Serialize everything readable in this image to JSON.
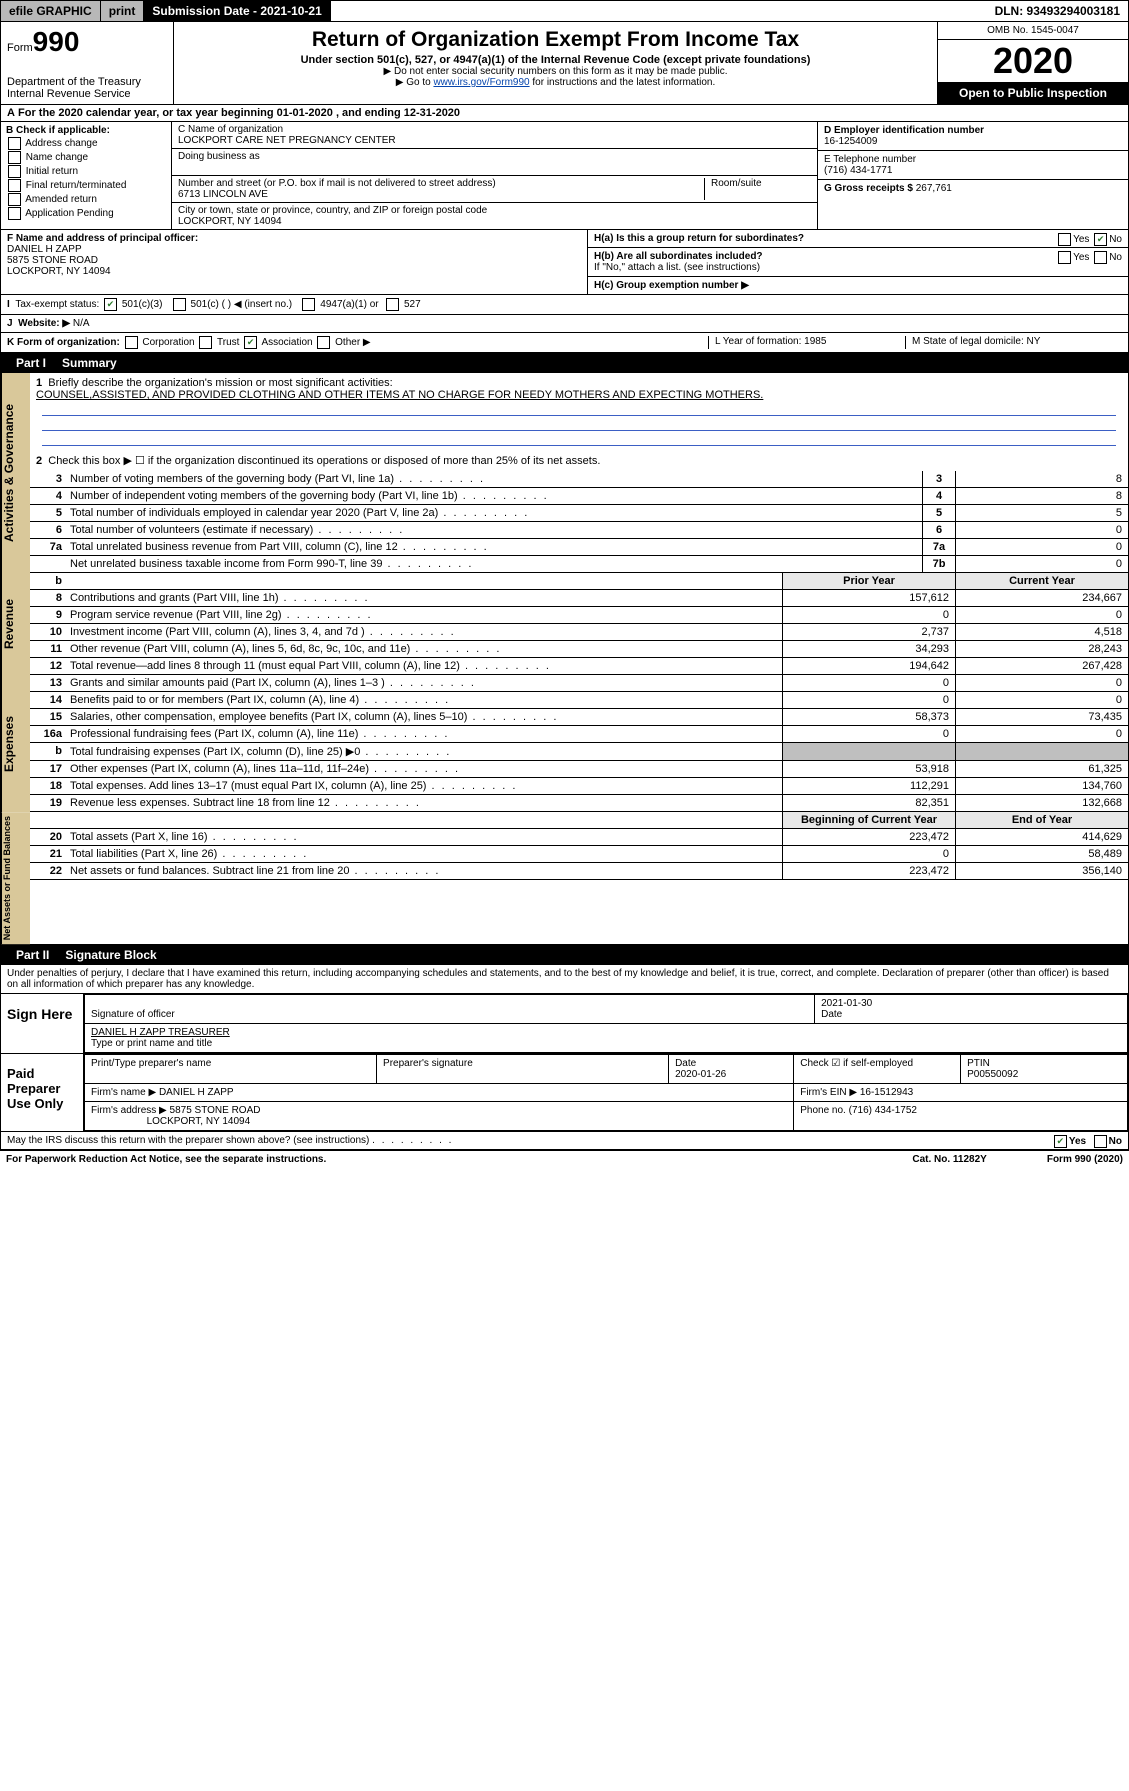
{
  "topbar": {
    "efile": "efile GRAPHIC",
    "print": "print",
    "subdate_label": "Submission Date - 2021-10-21",
    "dln": "DLN: 93493294003181"
  },
  "header": {
    "form_label": "Form",
    "form_num": "990",
    "dept": "Department of the Treasury",
    "irs": "Internal Revenue Service",
    "title": "Return of Organization Exempt From Income Tax",
    "sub1": "Under section 501(c), 527, or 4947(a)(1) of the Internal Revenue Code (except private foundations)",
    "sub2": "▶ Do not enter social security numbers on this form as it may be made public.",
    "sub3_pre": "▶ Go to ",
    "sub3_link": "www.irs.gov/Form990",
    "sub3_post": " for instructions and the latest information.",
    "omb": "OMB No. 1545-0047",
    "year": "2020",
    "open": "Open to Public Inspection"
  },
  "period": {
    "text": "For the 2020 calendar year, or tax year beginning 01-01-2020    , and ending 12-31-2020"
  },
  "boxB": {
    "title": "B Check if applicable:",
    "opts": [
      "Address change",
      "Name change",
      "Initial return",
      "Final return/terminated",
      "Amended return",
      "Application Pending"
    ]
  },
  "boxC": {
    "name_label": "C Name of organization",
    "name": "LOCKPORT CARE NET PREGNANCY CENTER",
    "dba_label": "Doing business as",
    "street_label": "Number and street (or P.O. box if mail is not delivered to street address)",
    "room_label": "Room/suite",
    "street": "6713 LINCOLN AVE",
    "city_label": "City or town, state or province, country, and ZIP or foreign postal code",
    "city": "LOCKPORT, NY  14094"
  },
  "boxD": {
    "label": "D Employer identification number",
    "ein": "16-1254009",
    "tel_label": "E Telephone number",
    "tel": "(716) 434-1771",
    "gross_label": "G Gross receipts $",
    "gross": "267,761"
  },
  "boxF": {
    "label": "F  Name and address of principal officer:",
    "l1": "DANIEL H ZAPP",
    "l2": "5875 STONE ROAD",
    "l3": "LOCKPORT, NY  14094"
  },
  "boxH": {
    "ha": "H(a)  Is this a group return for subordinates?",
    "hb": "H(b)  Are all subordinates included?",
    "hb_note": "If \"No,\" attach a list. (see instructions)",
    "hc": "H(c)  Group exemption number ▶",
    "yes": "Yes",
    "no": "No"
  },
  "rowI": {
    "label": "Tax-exempt status:",
    "o1": "501(c)(3)",
    "o2": "501(c) (  ) ◀ (insert no.)",
    "o3": "4947(a)(1) or",
    "o4": "527"
  },
  "rowJ": {
    "label": "Website: ▶",
    "val": "N/A"
  },
  "rowK": {
    "label": "K Form of organization:",
    "opts": [
      "Corporation",
      "Trust",
      "Association",
      "Other ▶"
    ],
    "L": "L Year of formation: 1985",
    "M": "M State of legal domicile: NY"
  },
  "part1": {
    "title": "Part I",
    "sub": "Summary",
    "l1_label": "Briefly describe the organization's mission or most significant activities:",
    "l1_text": "COUNSEL,ASSISTED, AND PROVIDED CLOTHING AND OTHER ITEMS AT NO CHARGE FOR NEEDY MOTHERS AND EXPECTING MOTHERS.",
    "l2": "Check this box ▶ ☐  if the organization discontinued its operations or disposed of more than 25% of its net assets.",
    "lines_gov": [
      {
        "n": "3",
        "t": "Number of voting members of the governing body (Part VI, line 1a)",
        "b": "3",
        "v": "8"
      },
      {
        "n": "4",
        "t": "Number of independent voting members of the governing body (Part VI, line 1b)",
        "b": "4",
        "v": "8"
      },
      {
        "n": "5",
        "t": "Total number of individuals employed in calendar year 2020 (Part V, line 2a)",
        "b": "5",
        "v": "5"
      },
      {
        "n": "6",
        "t": "Total number of volunteers (estimate if necessary)",
        "b": "6",
        "v": "0"
      },
      {
        "n": "7a",
        "t": "Total unrelated business revenue from Part VIII, column (C), line 12",
        "b": "7a",
        "v": "0"
      },
      {
        "n": "",
        "t": "Net unrelated business taxable income from Form 990-T, line 39",
        "b": "7b",
        "v": "0"
      }
    ],
    "hdr_prior": "Prior Year",
    "hdr_curr": "Current Year",
    "rev": [
      {
        "n": "8",
        "t": "Contributions and grants (Part VIII, line 1h)",
        "p": "157,612",
        "c": "234,667"
      },
      {
        "n": "9",
        "t": "Program service revenue (Part VIII, line 2g)",
        "p": "0",
        "c": "0"
      },
      {
        "n": "10",
        "t": "Investment income (Part VIII, column (A), lines 3, 4, and 7d )",
        "p": "2,737",
        "c": "4,518"
      },
      {
        "n": "11",
        "t": "Other revenue (Part VIII, column (A), lines 5, 6d, 8c, 9c, 10c, and 11e)",
        "p": "34,293",
        "c": "28,243"
      },
      {
        "n": "12",
        "t": "Total revenue—add lines 8 through 11 (must equal Part VIII, column (A), line 12)",
        "p": "194,642",
        "c": "267,428"
      }
    ],
    "exp": [
      {
        "n": "13",
        "t": "Grants and similar amounts paid (Part IX, column (A), lines 1–3 )",
        "p": "0",
        "c": "0"
      },
      {
        "n": "14",
        "t": "Benefits paid to or for members (Part IX, column (A), line 4)",
        "p": "0",
        "c": "0"
      },
      {
        "n": "15",
        "t": "Salaries, other compensation, employee benefits (Part IX, column (A), lines 5–10)",
        "p": "58,373",
        "c": "73,435"
      },
      {
        "n": "16a",
        "t": "Professional fundraising fees (Part IX, column (A), line 11e)",
        "p": "0",
        "c": "0"
      },
      {
        "n": "b",
        "t": "Total fundraising expenses (Part IX, column (D), line 25) ▶0",
        "p": "",
        "c": "",
        "gray": true
      },
      {
        "n": "17",
        "t": "Other expenses (Part IX, column (A), lines 11a–11d, 11f–24e)",
        "p": "53,918",
        "c": "61,325"
      },
      {
        "n": "18",
        "t": "Total expenses. Add lines 13–17 (must equal Part IX, column (A), line 25)",
        "p": "112,291",
        "c": "134,760"
      },
      {
        "n": "19",
        "t": "Revenue less expenses. Subtract line 18 from line 12",
        "p": "82,351",
        "c": "132,668"
      }
    ],
    "hdr_beg": "Beginning of Current Year",
    "hdr_end": "End of Year",
    "net": [
      {
        "n": "20",
        "t": "Total assets (Part X, line 16)",
        "p": "223,472",
        "c": "414,629"
      },
      {
        "n": "21",
        "t": "Total liabilities (Part X, line 26)",
        "p": "0",
        "c": "58,489"
      },
      {
        "n": "22",
        "t": "Net assets or fund balances. Subtract line 21 from line 20",
        "p": "223,472",
        "c": "356,140"
      }
    ],
    "side_gov": "Activities & Governance",
    "side_rev": "Revenue",
    "side_exp": "Expenses",
    "side_net": "Net Assets or Fund Balances"
  },
  "part2": {
    "title": "Part II",
    "sub": "Signature Block",
    "decl": "Under penalties of perjury, I declare that I have examined this return, including accompanying schedules and statements, and to the best of my knowledge and belief, it is true, correct, and complete. Declaration of preparer (other than officer) is based on all information of which preparer has any knowledge.",
    "sign_here": "Sign Here",
    "sig_officer": "Signature of officer",
    "date": "2021-01-30",
    "date_lbl": "Date",
    "name_title": "DANIEL H ZAPP  TREASURER",
    "name_lbl": "Type or print name and title",
    "paid": "Paid Preparer Use Only",
    "pt_name_lbl": "Print/Type preparer's name",
    "pt_sig_lbl": "Preparer's signature",
    "pt_date_lbl": "Date",
    "pt_date": "2020-01-26",
    "pt_chk": "Check ☑ if self-employed",
    "ptin_lbl": "PTIN",
    "ptin": "P00550092",
    "firm_name_lbl": "Firm's name    ▶",
    "firm_name": "DANIEL H ZAPP",
    "firm_ein_lbl": "Firm's EIN ▶",
    "firm_ein": "16-1512943",
    "firm_addr_lbl": "Firm's address ▶",
    "firm_addr": "5875 STONE ROAD",
    "firm_addr2": "LOCKPORT, NY  14094",
    "phone_lbl": "Phone no.",
    "phone": "(716) 434-1752",
    "discuss": "May the IRS discuss this return with the preparer shown above? (see instructions)"
  },
  "footer": {
    "l": "For Paperwork Reduction Act Notice, see the separate instructions.",
    "m": "Cat. No. 11282Y",
    "r": "Form 990 (2020)"
  }
}
